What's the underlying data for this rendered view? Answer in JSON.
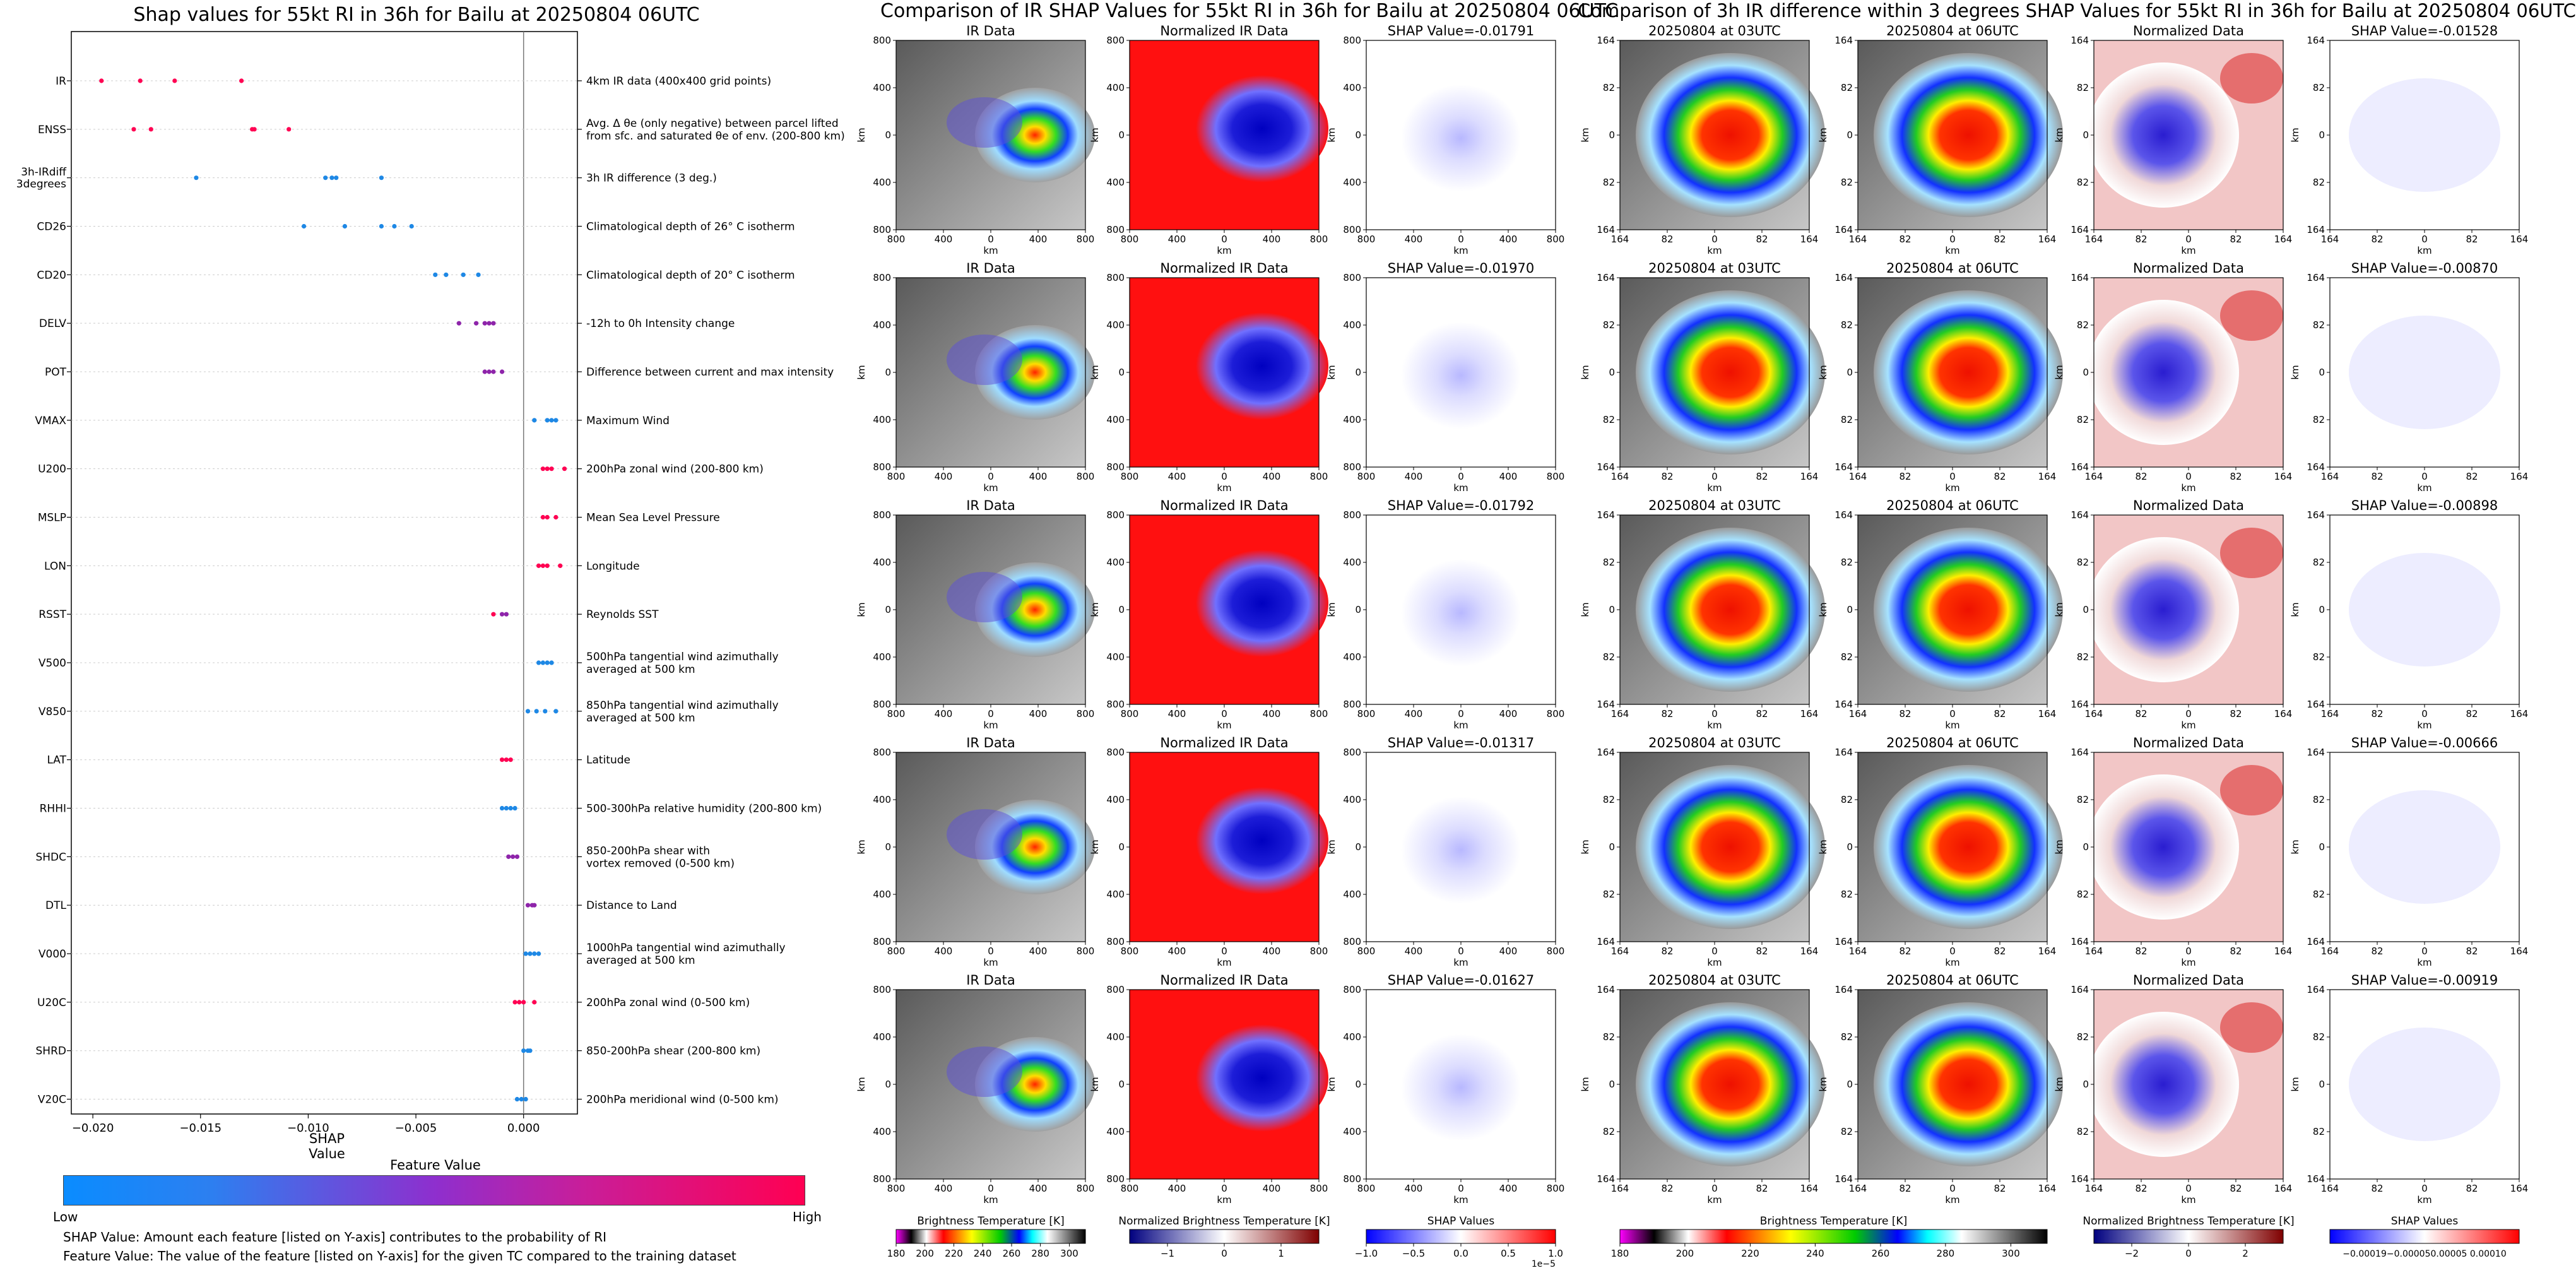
{
  "shap_panel": {
    "title": "Shap values for 55kt RI in 36h for Bailu at 20250804 06UTC",
    "xlabel": "SHAP Value",
    "colorbar_title": "Feature Value",
    "colorbar_low": "Low",
    "colorbar_high": "High",
    "footnote_1": "SHAP Value: Amount each feature [listed on Y-axis] contributes to the probability of RI",
    "footnote_2": "Feature Value: The value of the feature [listed on Y-axis] for the given TC compared to the training dataset"
  },
  "ir_section": {
    "title": "Comparison of IR SHAP Values for 55kt RI in 36h for Bailu at 20250804 06UTC",
    "col_titles": [
      "IR Data",
      "Normalized IR Data"
    ],
    "shap_titles": [
      "SHAP Value=-0.01791",
      "SHAP Value=-0.01970",
      "SHAP Value=-0.01792",
      "SHAP Value=-0.01317",
      "SHAP Value=-0.01627"
    ],
    "axis_label": "km",
    "ticks": [
      "800",
      "400",
      "0",
      "400",
      "800"
    ],
    "colorbar_labels": [
      "Brightness Temperature [K]",
      "Normalized Brightness Temperature [K]",
      "SHAP Values"
    ],
    "cb1_ticks": [
      "180",
      "200",
      "220",
      "240",
      "260",
      "280",
      "300"
    ],
    "cb2_ticks": [
      "−1",
      "0",
      "1"
    ],
    "cb3_ticks": [
      "−1.0",
      "−0.5",
      "0.0",
      "0.5",
      "1.0"
    ],
    "cb3_exp": "1e−5"
  },
  "diff_section": {
    "title": "Comparison of 3h IR difference within 3 degrees SHAP Values for 55kt RI in 36h for Bailu at 20250804 06UTC",
    "col_titles": [
      "20250804 at 03UTC",
      "20250804 at 06UTC",
      "Normalized Data"
    ],
    "shap_titles": [
      "SHAP Value=-0.01528",
      "SHAP Value=-0.00870",
      "SHAP Value=-0.00898",
      "SHAP Value=-0.00666",
      "SHAP Value=-0.00919"
    ],
    "axis_label": "km",
    "ticks": [
      "164",
      "82",
      "0",
      "82",
      "164"
    ],
    "colorbar_labels": [
      "Brightness Temperature [K]",
      "Normalized Brightness Temperature [K]",
      "SHAP Values"
    ],
    "cb1_ticks": [
      "180",
      "200",
      "220",
      "240",
      "260",
      "280",
      "300"
    ],
    "cb2_ticks": [
      "−2",
      "0",
      "2"
    ],
    "cb3_ticks": [
      "−0.00019",
      "−0.00005",
      "0.00005",
      "0.00010"
    ],
    "cb3_text": "−0.00019−0.000050.00005 0.00010"
  },
  "colors": {
    "low": "#1e88e5",
    "mid": "#8e24aa",
    "high": "#ff0052"
  },
  "chart_data": {
    "type": "scatter",
    "title": "Shap values for 55kt RI in 36h for Bailu at 20250804 06UTC",
    "xlabel": "SHAP Value",
    "xlim": [
      -0.021,
      0.0025
    ],
    "xticks": [
      -0.02,
      -0.015,
      -0.01,
      -0.005,
      0.0
    ],
    "xtick_labels": [
      "−0.020",
      "−0.015",
      "−0.010",
      "−0.005",
      "0.000"
    ],
    "features": [
      {
        "name": "IR",
        "desc": [
          "4km IR data (400x400 grid points)"
        ],
        "points": [
          [
            -0.0196,
            1
          ],
          [
            -0.0178,
            1
          ],
          [
            -0.0162,
            1
          ],
          [
            -0.0131,
            1
          ]
        ]
      },
      {
        "name": "ENSS",
        "desc": [
          "Avg. Δ θe (only negative) between parcel lifted",
          "from sfc. and saturated θe of env. (200-800 km)"
        ],
        "points": [
          [
            -0.0181,
            1
          ],
          [
            -0.0173,
            1
          ],
          [
            -0.0126,
            1
          ],
          [
            -0.0125,
            1
          ],
          [
            -0.0109,
            1
          ]
        ]
      },
      {
        "name": "3h-IRdiff 3degrees",
        "desc": [
          "3h IR difference (3 deg.)"
        ],
        "points": [
          [
            -0.0152,
            0
          ],
          [
            -0.0092,
            0
          ],
          [
            -0.0089,
            0
          ],
          [
            -0.0087,
            0
          ],
          [
            -0.0066,
            0
          ]
        ]
      },
      {
        "name": "CD26",
        "desc": [
          "Climatological depth of 26° C isotherm"
        ],
        "points": [
          [
            -0.0102,
            0
          ],
          [
            -0.0083,
            0
          ],
          [
            -0.0066,
            0
          ],
          [
            -0.006,
            0
          ],
          [
            -0.0052,
            0
          ]
        ]
      },
      {
        "name": "CD20",
        "desc": [
          "Climatological depth of 20° C isotherm"
        ],
        "points": [
          [
            -0.0041,
            0
          ],
          [
            -0.0036,
            0
          ],
          [
            -0.0028,
            0
          ],
          [
            -0.0021,
            0
          ]
        ]
      },
      {
        "name": "DELV",
        "desc": [
          "-12h to 0h Intensity change"
        ],
        "points": [
          [
            -0.003,
            0.5
          ],
          [
            -0.0022,
            0.5
          ],
          [
            -0.0018,
            0.5
          ],
          [
            -0.0016,
            0.5
          ],
          [
            -0.0014,
            0.5
          ]
        ]
      },
      {
        "name": "POT",
        "desc": [
          "Difference between current and max intensity"
        ],
        "points": [
          [
            -0.0018,
            0.5
          ],
          [
            -0.0016,
            0.5
          ],
          [
            -0.0014,
            0.5
          ],
          [
            -0.001,
            0.5
          ]
        ]
      },
      {
        "name": "VMAX",
        "desc": [
          "Maximum Wind"
        ],
        "points": [
          [
            0.0005,
            0
          ],
          [
            0.0011,
            0
          ],
          [
            0.0013,
            0
          ],
          [
            0.0015,
            0
          ]
        ]
      },
      {
        "name": "U200",
        "desc": [
          "200hPa zonal wind (200-800 km)"
        ],
        "points": [
          [
            0.0009,
            1
          ],
          [
            0.0011,
            1
          ],
          [
            0.0013,
            1
          ],
          [
            0.0019,
            1
          ]
        ]
      },
      {
        "name": "MSLP",
        "desc": [
          "Mean Sea Level Pressure"
        ],
        "points": [
          [
            0.0009,
            1
          ],
          [
            0.0011,
            1
          ],
          [
            0.0015,
            1
          ]
        ]
      },
      {
        "name": "LON",
        "desc": [
          "Longitude"
        ],
        "points": [
          [
            0.0007,
            1
          ],
          [
            0.0009,
            1
          ],
          [
            0.0011,
            1
          ],
          [
            0.0017,
            1
          ]
        ]
      },
      {
        "name": "RSST",
        "desc": [
          "Reynolds SST"
        ],
        "points": [
          [
            -0.0014,
            1
          ],
          [
            -0.001,
            0.5
          ],
          [
            -0.0008,
            0.5
          ]
        ]
      },
      {
        "name": "V500",
        "desc": [
          "500hPa tangential wind azimuthally",
          "averaged at 500 km"
        ],
        "points": [
          [
            0.0007,
            0
          ],
          [
            0.0009,
            0
          ],
          [
            0.0011,
            0
          ],
          [
            0.0013,
            0
          ]
        ]
      },
      {
        "name": "V850",
        "desc": [
          "850hPa tangential wind azimuthally",
          "averaged at 500 km"
        ],
        "points": [
          [
            0.0002,
            0
          ],
          [
            0.0006,
            0
          ],
          [
            0.001,
            0
          ],
          [
            0.0015,
            0
          ]
        ]
      },
      {
        "name": "LAT",
        "desc": [
          "Latitude"
        ],
        "points": [
          [
            -0.001,
            1
          ],
          [
            -0.0008,
            1
          ],
          [
            -0.0006,
            1
          ]
        ]
      },
      {
        "name": "RHHI",
        "desc": [
          "500-300hPa relative humidity (200-800 km)"
        ],
        "points": [
          [
            -0.001,
            0
          ],
          [
            -0.0008,
            0
          ],
          [
            -0.0006,
            0
          ],
          [
            -0.0004,
            0
          ]
        ]
      },
      {
        "name": "SHDC",
        "desc": [
          "850-200hPa shear with",
          "vortex removed (0-500 km)"
        ],
        "points": [
          [
            -0.0007,
            0.5
          ],
          [
            -0.0005,
            0.5
          ],
          [
            -0.0003,
            0.5
          ]
        ]
      },
      {
        "name": "DTL",
        "desc": [
          "Distance to Land"
        ],
        "points": [
          [
            0.0002,
            0.5
          ],
          [
            0.0004,
            0.5
          ],
          [
            0.0005,
            0.5
          ]
        ]
      },
      {
        "name": "V000",
        "desc": [
          "1000hPa tangential wind azimuthally",
          "averaged at 500 km"
        ],
        "points": [
          [
            0.0001,
            0
          ],
          [
            0.0003,
            0
          ],
          [
            0.0005,
            0
          ],
          [
            0.0007,
            0
          ]
        ]
      },
      {
        "name": "U20C",
        "desc": [
          "200hPa zonal wind (0-500 km)"
        ],
        "points": [
          [
            -0.0004,
            1
          ],
          [
            -0.0002,
            1
          ],
          [
            0.0,
            1
          ],
          [
            0.0005,
            1
          ]
        ]
      },
      {
        "name": "SHRD",
        "desc": [
          "850-200hPa shear (200-800 km)"
        ],
        "points": [
          [
            0.0,
            0
          ],
          [
            0.0002,
            0
          ],
          [
            0.0003,
            0
          ]
        ]
      },
      {
        "name": "V20C",
        "desc": [
          "200hPa meridional wind (0-500 km)"
        ],
        "points": [
          [
            -0.0003,
            0
          ],
          [
            -0.0001,
            0
          ],
          [
            0.0001,
            0
          ]
        ]
      }
    ]
  }
}
